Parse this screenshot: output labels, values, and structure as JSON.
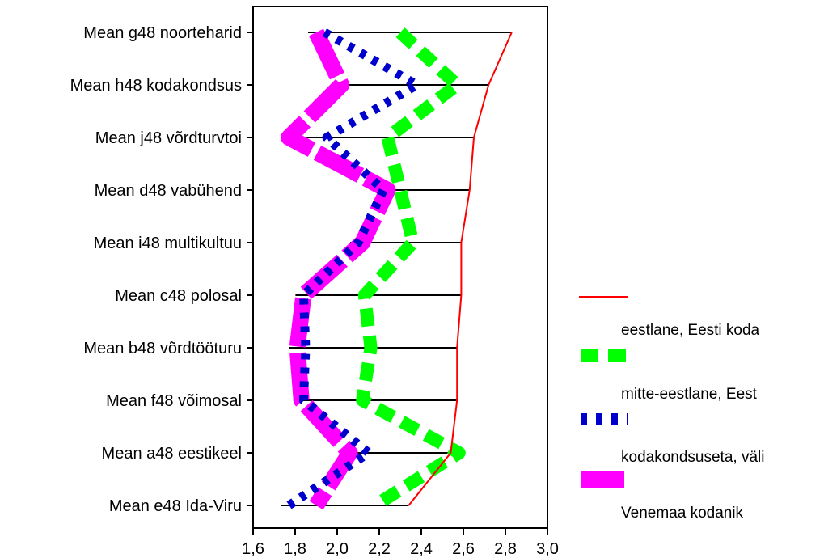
{
  "chart_data": {
    "type": "line",
    "orientation": "horizontal",
    "categories": [
      "Mean g48 noorteharid",
      "Mean h48 kodakondsus",
      "Mean j48 võrdturvtoi",
      "Mean d48 vabühend",
      "Mean i48 multikultuu",
      "Mean c48 polosal",
      "Mean b48 võrdtööturu",
      "Mean f48 võimosal",
      "Mean a48 eestikeel",
      "Mean e48 Ida-Viru"
    ],
    "xlim": [
      1.6,
      3.0
    ],
    "xticks": [
      "1,6",
      "1,8",
      "2,0",
      "2,2",
      "2,4",
      "2,6",
      "2,8",
      "3,0"
    ],
    "xtick_values": [
      1.6,
      1.8,
      2.0,
      2.2,
      2.4,
      2.6,
      2.8,
      3.0
    ],
    "series": [
      {
        "color": "#ff0000",
        "style": "solid",
        "values": [
          2.83,
          2.72,
          2.65,
          2.63,
          2.59,
          2.59,
          2.57,
          2.57,
          2.54,
          2.34
        ]
      },
      {
        "color": "#00ff00",
        "style": "dash",
        "values": [
          2.3,
          2.57,
          2.24,
          2.3,
          2.36,
          2.13,
          2.16,
          2.12,
          2.58,
          2.18
        ]
      },
      {
        "color": "#0000cc",
        "style": "dot",
        "values": [
          1.94,
          2.38,
          1.95,
          2.22,
          2.1,
          1.84,
          1.85,
          1.84,
          2.15,
          1.77
        ]
      },
      {
        "color": "#ff00ff",
        "style": "thick-dash",
        "values": [
          1.9,
          2.02,
          1.77,
          2.24,
          2.12,
          1.84,
          1.81,
          1.83,
          2.06,
          1.9
        ]
      }
    ],
    "range_lines": true,
    "legend": {
      "position": "right",
      "labels": [
        "eestlane, Eesti koda",
        "mitte-eestlane, Eest",
        "kodakondsuseta, väli",
        "Venemaa kodanik"
      ]
    }
  }
}
